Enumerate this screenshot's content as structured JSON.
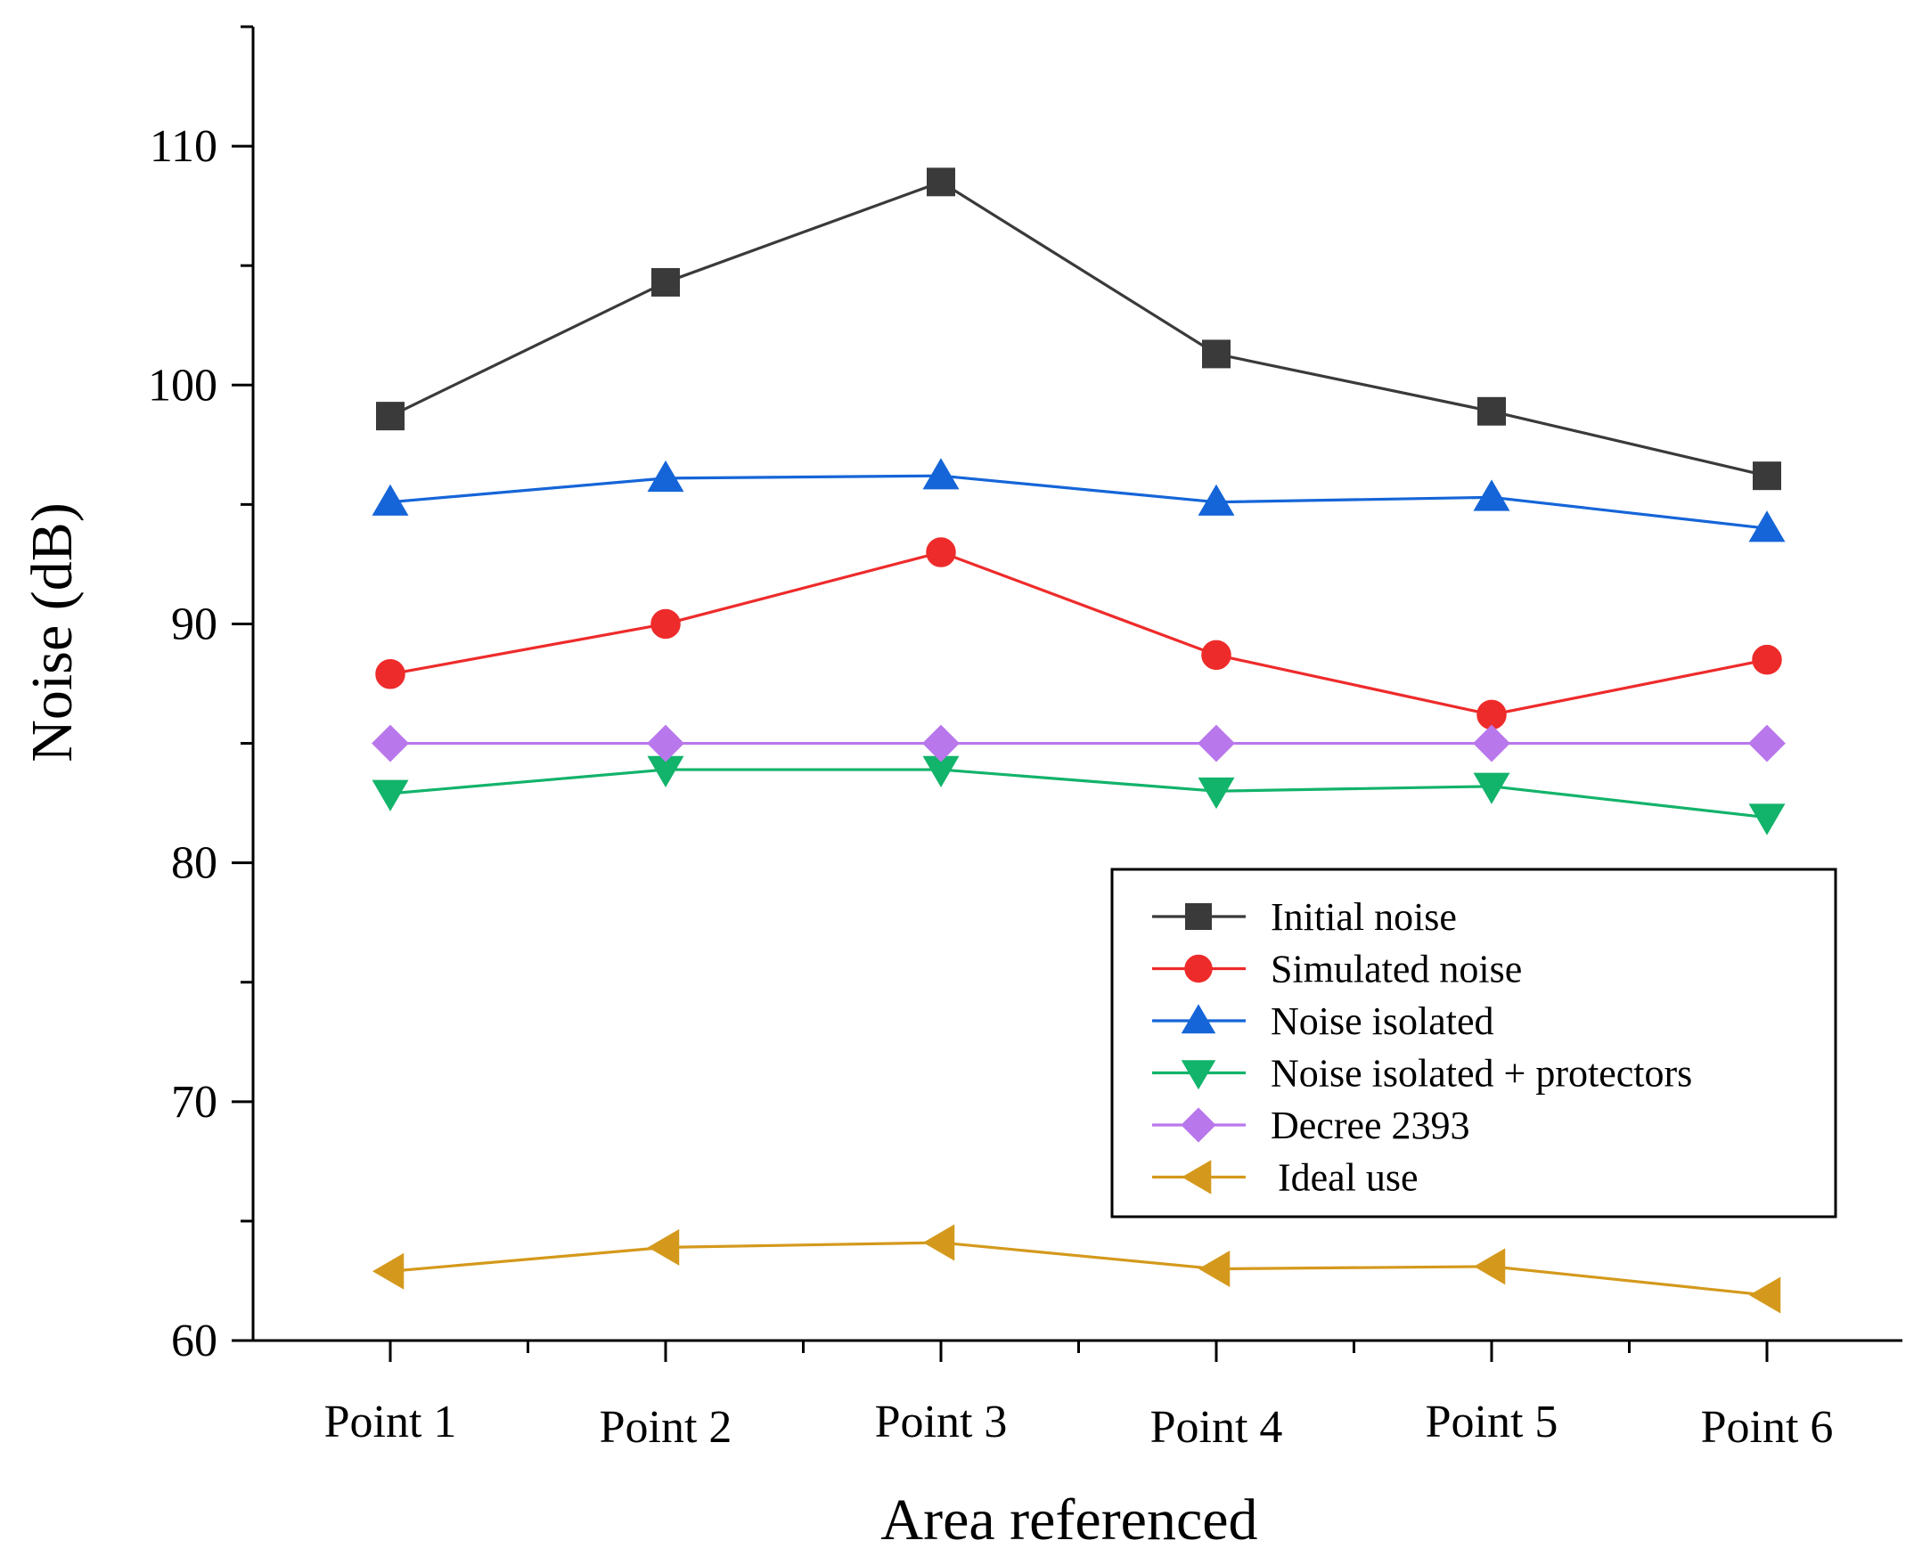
{
  "chart_data": {
    "type": "line",
    "title": "",
    "xlabel": "Area referenced",
    "ylabel": "Noise (dB)",
    "categories": [
      "Point 1",
      "Point 2",
      "Point 3",
      "Point 4",
      "Point 5",
      "Point 6"
    ],
    "ylim": [
      60,
      115
    ],
    "yticks": [
      "60",
      "70",
      "80",
      "90",
      "100",
      "110"
    ],
    "grid": false,
    "legend_position": "lower-right",
    "series": [
      {
        "name": "Initial noise",
        "values": [
          98.7,
          104.3,
          108.5,
          101.3,
          98.9,
          96.2
        ],
        "color": "#3a3a3a",
        "marker": "square"
      },
      {
        "name": "Simulated noise",
        "values": [
          87.9,
          90.0,
          93.0,
          88.7,
          86.2,
          88.5
        ],
        "color": "#ee2b2b",
        "marker": "circle"
      },
      {
        "name": "Noise isolated",
        "values": [
          95.1,
          96.1,
          96.2,
          95.1,
          95.3,
          94.0
        ],
        "color": "#1565d8",
        "marker": "triangle-up"
      },
      {
        "name": "Noise isolated + protectors",
        "values": [
          82.9,
          83.9,
          83.9,
          83.0,
          83.2,
          81.9
        ],
        "color": "#12b36a",
        "marker": "triangle-down"
      },
      {
        "name": "Decree 2393",
        "values": [
          85.0,
          85.0,
          85.0,
          85.0,
          85.0,
          85.0
        ],
        "color": "#b977ec",
        "marker": "diamond"
      },
      {
        "name": "Ideal use",
        "values": [
          62.9,
          63.9,
          64.1,
          63.0,
          63.1,
          61.9
        ],
        "color": "#d4991c",
        "marker": "triangle-left"
      }
    ]
  }
}
